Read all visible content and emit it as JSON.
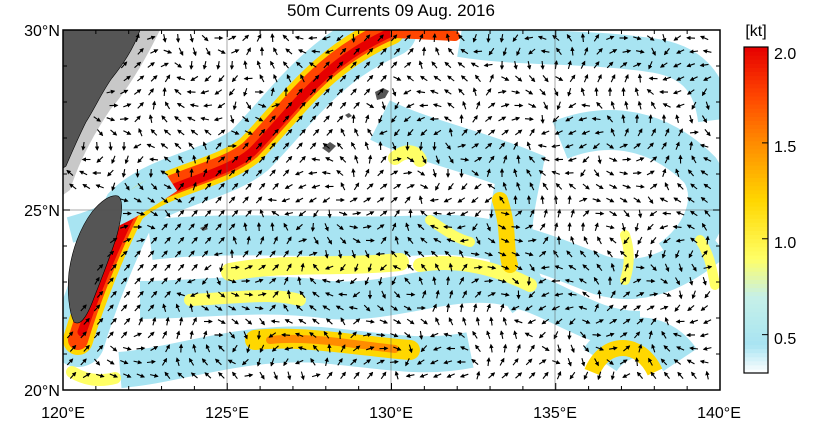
{
  "title": "50m Currents  09 Aug. 2016",
  "map": {
    "lon_range": [
      120,
      140
    ],
    "lat_range": [
      20,
      30
    ],
    "lon_ticks": [
      {
        "value": 120,
        "label": "120°E"
      },
      {
        "value": 125,
        "label": "125°E"
      },
      {
        "value": 130,
        "label": "130°E"
      },
      {
        "value": 135,
        "label": "135°E"
      },
      {
        "value": 140,
        "label": "140°E"
      }
    ],
    "lat_ticks": [
      {
        "value": 20,
        "label": "20°N"
      },
      {
        "value": 25,
        "label": "25°N"
      },
      {
        "value": 30,
        "label": "30°N"
      }
    ],
    "gridlines": true,
    "land_color": "#555555",
    "shelf_color": "#c8c8c8"
  },
  "colorbar": {
    "unit": "[kt]",
    "range": [
      0.3,
      2.0
    ],
    "ticks": [
      {
        "value": 0.5,
        "label": "0.5"
      },
      {
        "value": 1.0,
        "label": "1.0"
      },
      {
        "value": 1.5,
        "label": "1.5"
      },
      {
        "value": 2.0,
        "label": "2.0"
      }
    ],
    "stops": [
      {
        "value": 0.3,
        "color": "#ffffff"
      },
      {
        "value": 0.45,
        "color": "#a8e4f2"
      },
      {
        "value": 0.7,
        "color": "#c6f0e8"
      },
      {
        "value": 0.9,
        "color": "#ffff66"
      },
      {
        "value": 1.2,
        "color": "#ffd700"
      },
      {
        "value": 1.5,
        "color": "#ff8c00"
      },
      {
        "value": 1.75,
        "color": "#ff4500"
      },
      {
        "value": 2.0,
        "color": "#e60000"
      }
    ]
  }
}
